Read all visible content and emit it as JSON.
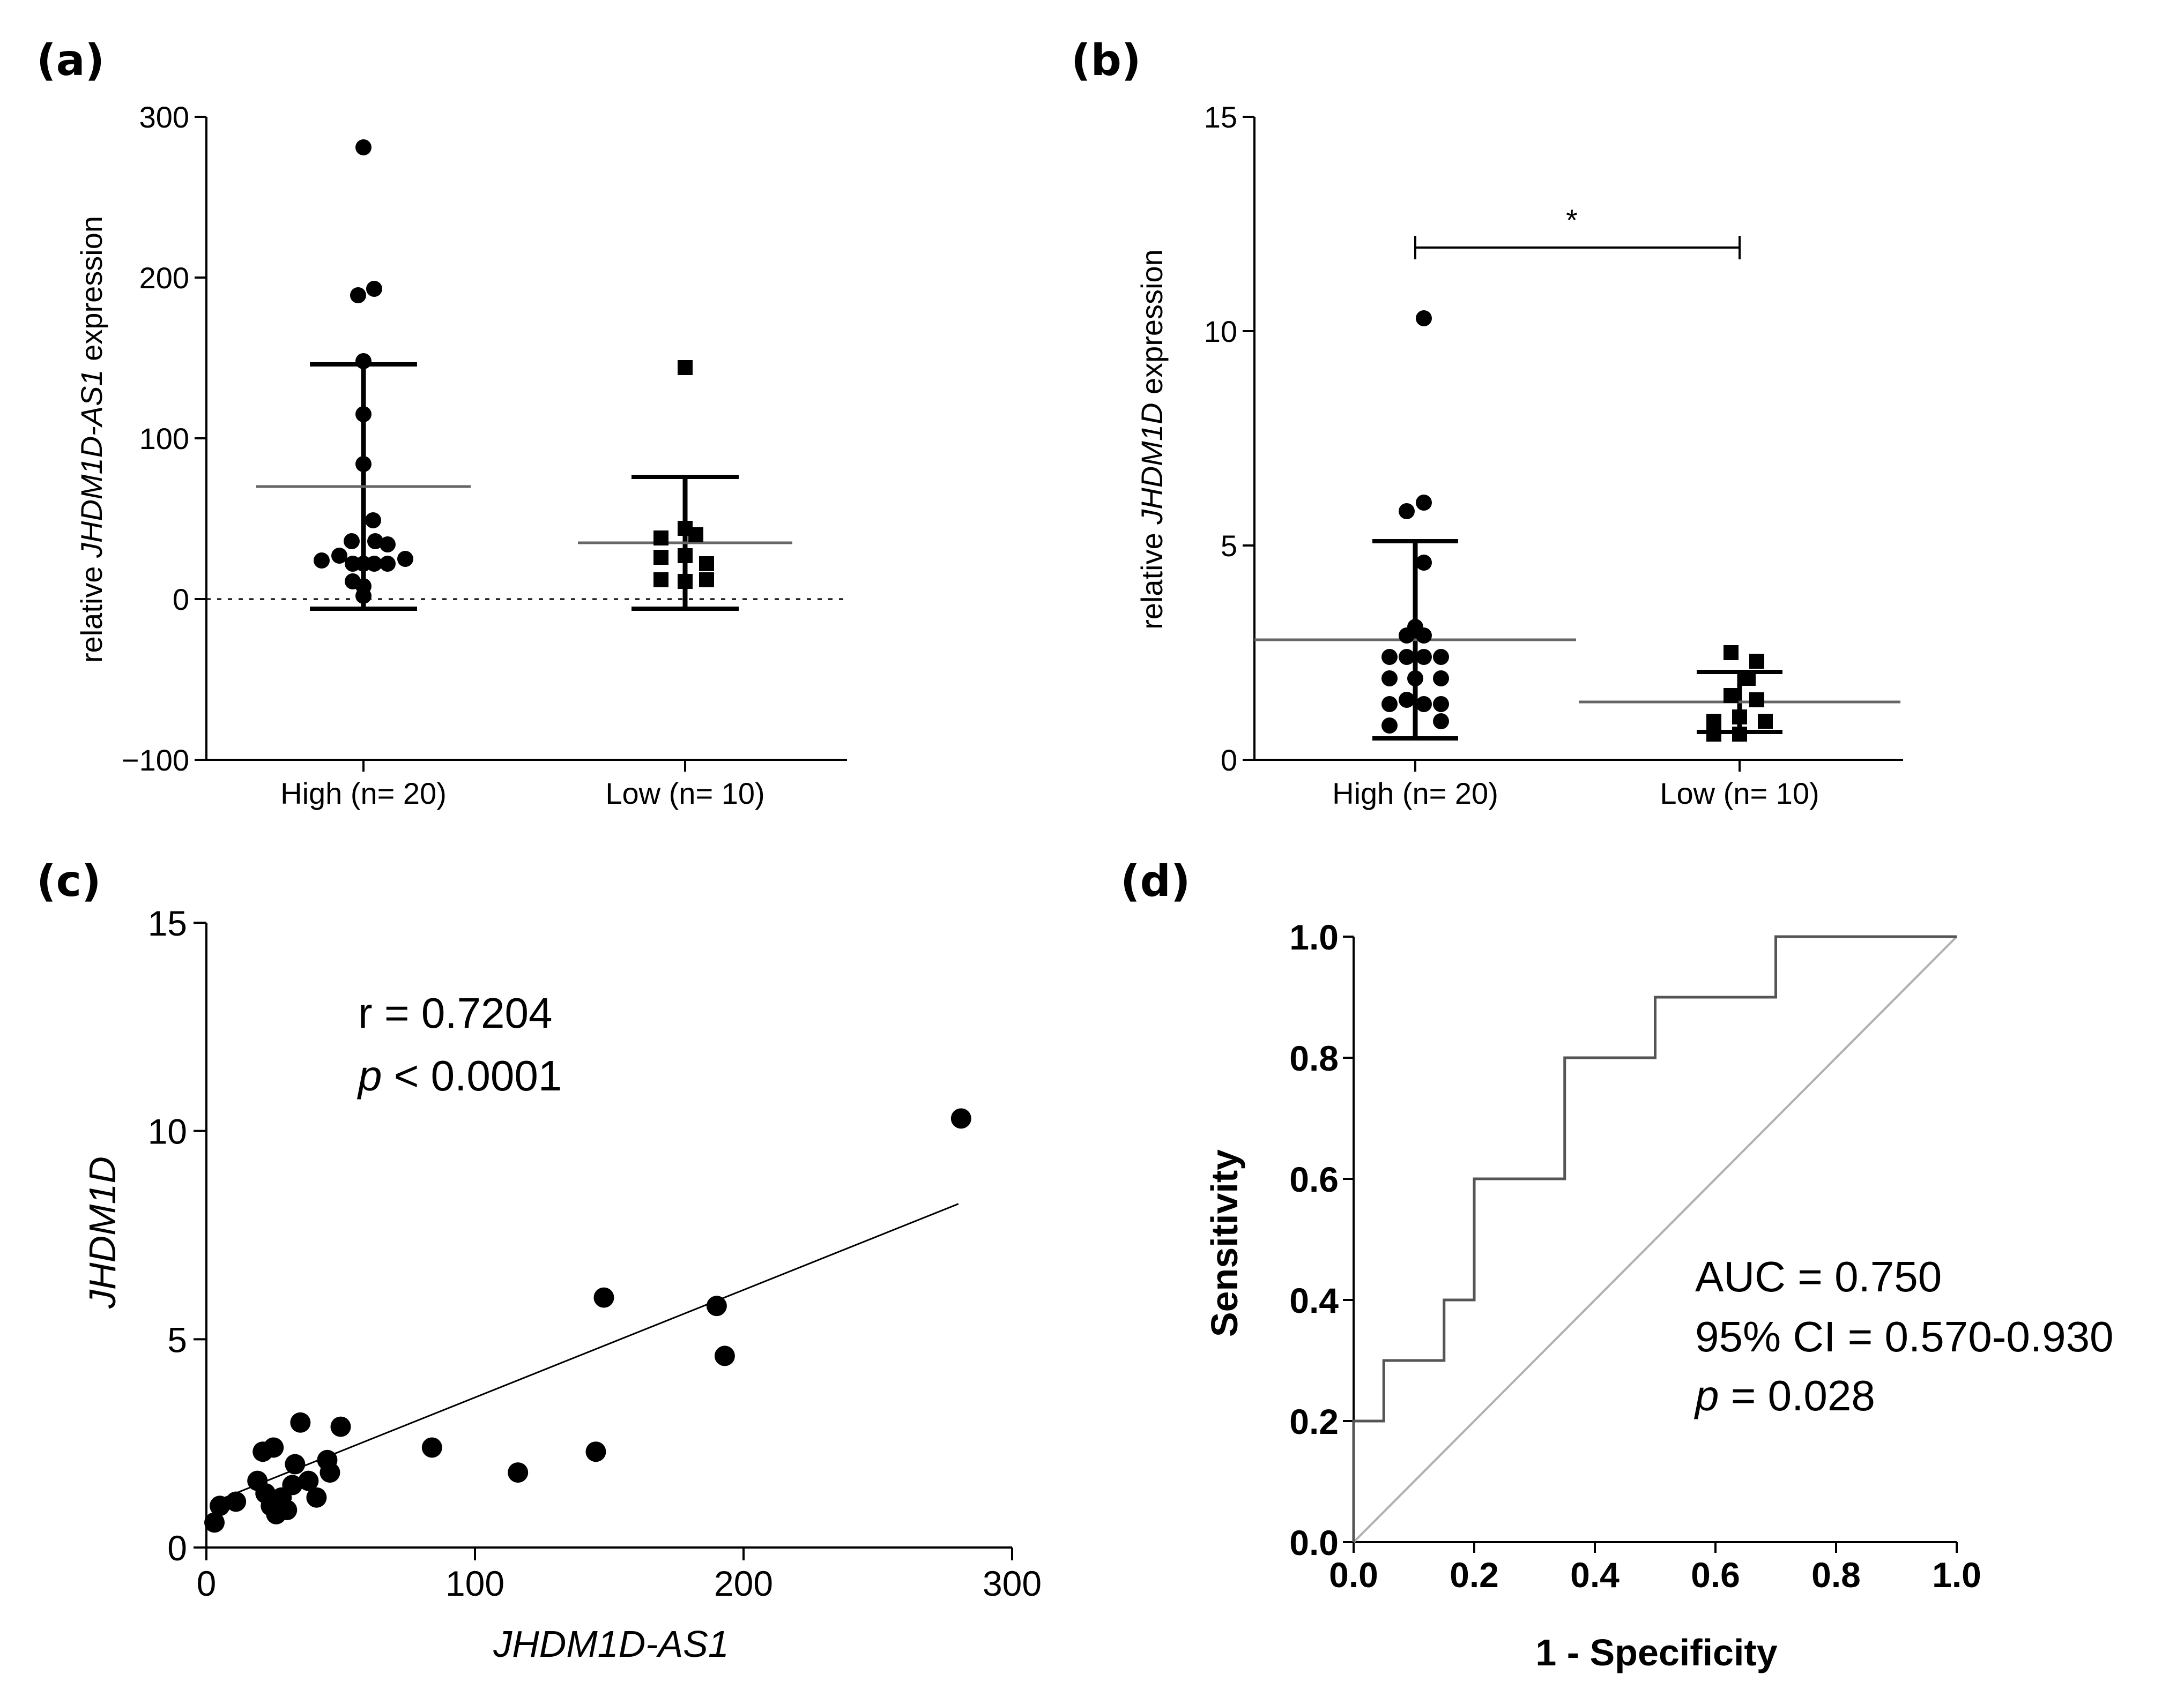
{
  "chart_data": [
    {
      "panel": "(a)",
      "type": "scatter",
      "ylabel_pre": "relative ",
      "ylabel_ital": "JHDM1D-AS1",
      "ylabel_post": " expression",
      "ylim": [
        -100,
        300
      ],
      "yticks": [
        -100,
        0,
        100,
        200,
        300
      ],
      "ytick_labels": [
        "−100",
        "0",
        "100",
        "200",
        "300"
      ],
      "categories": [
        "High (n= 20)",
        "Low (n= 10)"
      ],
      "reference_line": 0,
      "series": [
        {
          "name": "High (n= 20)",
          "marker": "circle",
          "mean": 70,
          "sd_upper": 146,
          "sd_lower": -6,
          "points": [
            [
              -0.78,
              24
            ],
            [
              -0.45,
              27
            ],
            [
              -0.22,
              36
            ],
            [
              0.22,
              36
            ],
            [
              0.45,
              34
            ],
            [
              0.78,
              25
            ],
            [
              0.0,
              281
            ],
            [
              -0.1,
              189
            ],
            [
              0.2,
              193
            ],
            [
              0.0,
              148
            ],
            [
              0.0,
              115
            ],
            [
              0.0,
              84
            ],
            [
              0.18,
              49
            ],
            [
              -0.2,
              22
            ],
            [
              0.0,
              22
            ],
            [
              0.2,
              22
            ],
            [
              0.45,
              22
            ],
            [
              -0.2,
              11
            ],
            [
              0.0,
              8
            ],
            [
              0.0,
              2
            ]
          ]
        },
        {
          "name": "Low (n= 10)",
          "marker": "square",
          "mean": 35,
          "sd_upper": 76,
          "sd_lower": -6,
          "points": [
            [
              0.0,
              144
            ],
            [
              0.0,
              44
            ],
            [
              -0.45,
              38
            ],
            [
              0.2,
              40
            ],
            [
              -0.45,
              26
            ],
            [
              0.0,
              27
            ],
            [
              -0.45,
              12
            ],
            [
              0.0,
              11
            ],
            [
              0.4,
              12
            ],
            [
              0.4,
              22
            ]
          ]
        }
      ]
    },
    {
      "panel": "(b)",
      "type": "scatter",
      "ylabel_pre": "relative ",
      "ylabel_ital": "JHDM1D",
      "ylabel_post": " expression",
      "ylim": [
        0,
        15
      ],
      "yticks": [
        0,
        5,
        10,
        15
      ],
      "ytick_labels": [
        "0",
        "5",
        "10",
        "15"
      ],
      "categories": [
        "High (n= 20)",
        "Low (n= 10)"
      ],
      "significance": "*",
      "series": [
        {
          "name": "High (n= 20)",
          "marker": "circle",
          "mean": 2.8,
          "sd_upper": 5.1,
          "sd_lower": 0.5,
          "points": [
            [
              0.2,
              10.3
            ],
            [
              -0.2,
              5.8
            ],
            [
              0.2,
              6.0
            ],
            [
              0.2,
              4.6
            ],
            [
              0.0,
              3.1
            ],
            [
              -0.2,
              2.9
            ],
            [
              0.2,
              2.9
            ],
            [
              -0.6,
              2.4
            ],
            [
              -0.2,
              2.4
            ],
            [
              0.2,
              2.4
            ],
            [
              0.6,
              2.4
            ],
            [
              -0.6,
              1.9
            ],
            [
              0.0,
              1.9
            ],
            [
              0.6,
              1.9
            ],
            [
              -0.6,
              1.3
            ],
            [
              -0.2,
              1.4
            ],
            [
              0.2,
              1.3
            ],
            [
              0.6,
              1.3
            ],
            [
              -0.6,
              0.8
            ],
            [
              0.6,
              0.9
            ]
          ]
        },
        {
          "name": "Low (n= 10)",
          "marker": "square",
          "mean": 1.35,
          "sd_upper": 2.05,
          "sd_lower": 0.65,
          "points": [
            [
              -0.2,
              2.5
            ],
            [
              0.4,
              2.3
            ],
            [
              0.2,
              1.9
            ],
            [
              -0.2,
              1.5
            ],
            [
              0.4,
              1.4
            ],
            [
              0.0,
              1.0
            ],
            [
              -0.6,
              0.9
            ],
            [
              0.6,
              0.9
            ],
            [
              -0.6,
              0.6
            ],
            [
              0.0,
              0.6
            ]
          ]
        }
      ]
    },
    {
      "panel": "(c)",
      "type": "scatter",
      "xlabel": "JHDM1D-AS1",
      "ylabel": "JHDM1D",
      "xlim": [
        0,
        300
      ],
      "ylim": [
        0,
        15
      ],
      "xticks": [
        0,
        100,
        200,
        300
      ],
      "yticks": [
        0,
        5,
        10,
        15
      ],
      "annotation_r": "r = 0.7204",
      "annotation_p_ital": "p",
      "annotation_p_rest": " < 0.0001",
      "regression": [
        [
          5,
          1.15
        ],
        [
          280,
          8.25
        ]
      ],
      "points": [
        [
          3,
          0.6
        ],
        [
          5,
          1.0
        ],
        [
          11,
          1.1
        ],
        [
          19,
          1.6
        ],
        [
          21,
          2.3
        ],
        [
          25,
          2.4
        ],
        [
          22,
          1.3
        ],
        [
          24,
          1.0
        ],
        [
          26,
          0.8
        ],
        [
          28,
          1.2
        ],
        [
          30,
          0.9
        ],
        [
          32,
          1.5
        ],
        [
          33,
          2.0
        ],
        [
          35,
          3.0
        ],
        [
          38,
          1.6
        ],
        [
          41,
          1.2
        ],
        [
          45,
          2.1
        ],
        [
          46,
          1.8
        ],
        [
          50,
          2.9
        ],
        [
          84,
          2.4
        ],
        [
          116,
          1.8
        ],
        [
          145,
          2.3
        ],
        [
          148,
          6.0
        ],
        [
          190,
          5.8
        ],
        [
          193,
          4.6
        ],
        [
          281,
          10.3
        ]
      ]
    },
    {
      "panel": "(d)",
      "type": "line",
      "xlabel": "1 - Specificity",
      "ylabel": "Sensitivity",
      "xlim": [
        0,
        1
      ],
      "ylim": [
        0,
        1
      ],
      "xticks": [
        "0.0",
        "0.2",
        "0.4",
        "0.6",
        "0.8",
        "1.0"
      ],
      "yticks": [
        "0.0",
        "0.2",
        "0.4",
        "0.6",
        "0.8",
        "1.0"
      ],
      "roc_steps": [
        [
          0,
          0
        ],
        [
          0,
          0.2
        ],
        [
          0.05,
          0.2
        ],
        [
          0.05,
          0.3
        ],
        [
          0.15,
          0.3
        ],
        [
          0.15,
          0.4
        ],
        [
          0.2,
          0.4
        ],
        [
          0.2,
          0.6
        ],
        [
          0.35,
          0.6
        ],
        [
          0.35,
          0.8
        ],
        [
          0.5,
          0.8
        ],
        [
          0.5,
          0.9
        ],
        [
          0.7,
          0.9
        ],
        [
          0.7,
          1.0
        ],
        [
          1.0,
          1.0
        ]
      ],
      "reference_diagonal": [
        [
          0,
          0
        ],
        [
          1,
          1
        ]
      ],
      "annotation_auc": "AUC = 0.750",
      "annotation_ci": "95% CI = 0.570-0.930",
      "annotation_p_ital": "p",
      "annotation_p_rest": " = 0.028"
    }
  ]
}
